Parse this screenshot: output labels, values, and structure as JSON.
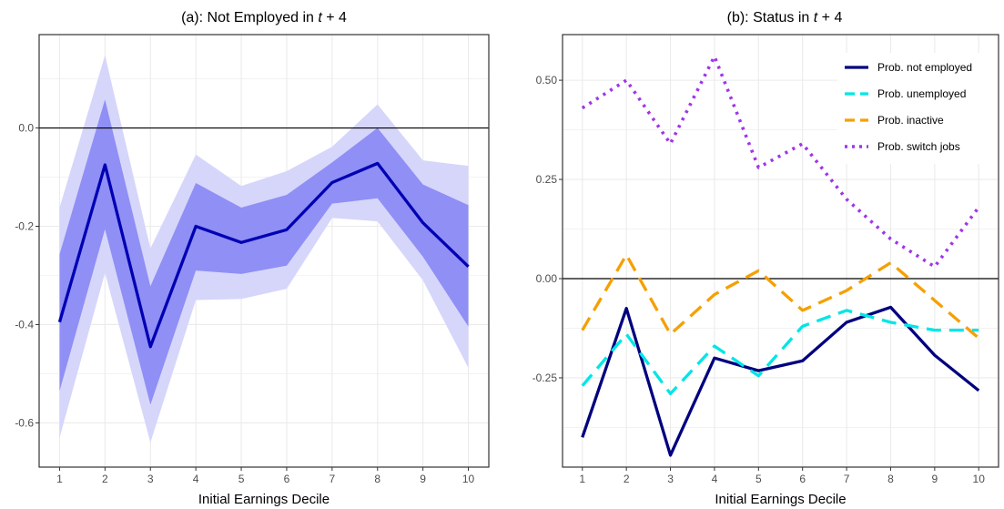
{
  "chart_data": [
    {
      "type": "line",
      "title": "(a): Not Employed in t + 4",
      "xlabel": "Initial Earnings Decile",
      "ylabel": "",
      "x": [
        1,
        2,
        3,
        4,
        5,
        6,
        7,
        8,
        9,
        10
      ],
      "xticks": [
        "1",
        "2",
        "3",
        "4",
        "5",
        "6",
        "7",
        "8",
        "9",
        "10"
      ],
      "yticks": [
        "-0.6",
        "-0.4",
        "-0.2",
        "0.0"
      ],
      "ytick_values": [
        -0.6,
        -0.4,
        -0.2,
        0.0
      ],
      "ylim": [
        -0.69,
        0.19
      ],
      "xlim": [
        0.55,
        10.45
      ],
      "zero_line": true,
      "grid": true,
      "series": [
        {
          "values": [
            -0.395,
            -0.075,
            -0.445,
            -0.2,
            -0.233,
            -0.207,
            -0.111,
            -0.072,
            -0.193,
            -0.282
          ],
          "color": "#0000b3"
        }
      ],
      "bands": [
        {
          "level": "outer",
          "color": "#d6d6fb",
          "lower": [
            -0.63,
            -0.295,
            -0.64,
            -0.35,
            -0.348,
            -0.327,
            -0.183,
            -0.19,
            -0.31,
            -0.488
          ],
          "upper": [
            -0.162,
            0.148,
            -0.245,
            -0.054,
            -0.118,
            -0.088,
            -0.038,
            0.048,
            -0.066,
            -0.077
          ]
        },
        {
          "level": "inner",
          "color": "#8f8ff5",
          "lower": [
            -0.535,
            -0.206,
            -0.563,
            -0.29,
            -0.297,
            -0.28,
            -0.154,
            -0.143,
            -0.262,
            -0.404
          ],
          "upper": [
            -0.257,
            0.058,
            -0.322,
            -0.112,
            -0.162,
            -0.136,
            -0.07,
            0.0,
            -0.115,
            -0.157
          ]
        }
      ]
    },
    {
      "type": "line",
      "title": "(b): Status in t + 4",
      "xlabel": "Initial Earnings Decile",
      "ylabel": "",
      "x": [
        1,
        2,
        3,
        4,
        5,
        6,
        7,
        8,
        9,
        10
      ],
      "xticks": [
        "1",
        "2",
        "3",
        "4",
        "5",
        "6",
        "7",
        "8",
        "9",
        "10"
      ],
      "yticks": [
        "-0.25",
        "0.00",
        "0.25",
        "0.50"
      ],
      "ytick_values": [
        -0.25,
        0.0,
        0.25,
        0.5
      ],
      "ylim": [
        -0.475,
        0.615
      ],
      "xlim": [
        0.55,
        10.45
      ],
      "zero_line": true,
      "grid": true,
      "legend": {
        "position": "top-right"
      },
      "series": [
        {
          "name": "Prob. not employed",
          "color": "#00007f",
          "dash": "solid",
          "values": [
            -0.4,
            -0.075,
            -0.445,
            -0.2,
            -0.232,
            -0.207,
            -0.11,
            -0.072,
            -0.193,
            -0.282
          ]
        },
        {
          "name": "Prob. unemployed",
          "color": "#00e6e6",
          "dash": "dashed",
          "values": [
            -0.27,
            -0.14,
            -0.29,
            -0.17,
            -0.245,
            -0.12,
            -0.08,
            -0.11,
            -0.13,
            -0.13
          ]
        },
        {
          "name": "Prob. inactive",
          "color": "#f5a000",
          "dash": "dashed",
          "values": [
            -0.13,
            0.06,
            -0.14,
            -0.04,
            0.02,
            -0.08,
            -0.03,
            0.04,
            -0.055,
            -0.15
          ]
        },
        {
          "name": "Prob. switch jobs",
          "color": "#a035e8",
          "dash": "dotted",
          "values": [
            0.43,
            0.5,
            0.34,
            0.56,
            0.28,
            0.34,
            0.2,
            0.1,
            0.03,
            0.18
          ]
        }
      ]
    }
  ]
}
